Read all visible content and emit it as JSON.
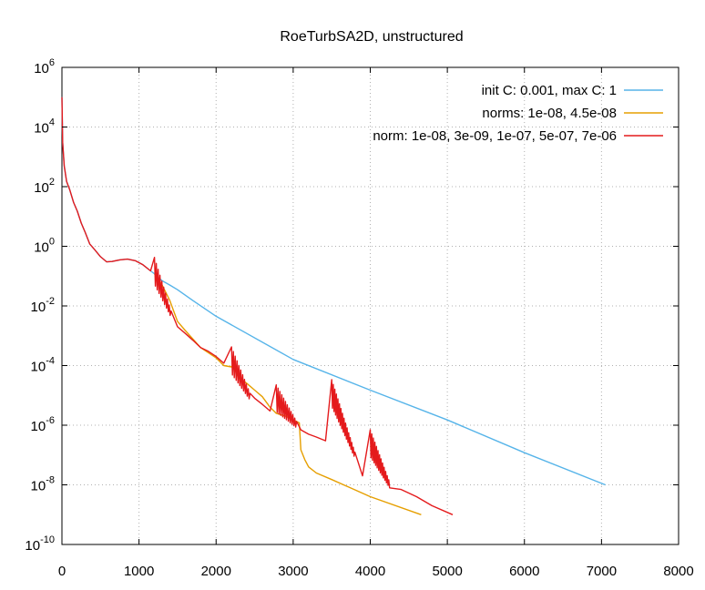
{
  "chart_data": {
    "type": "line",
    "title": "RoeTurbSA2D, unstructured",
    "xlabel": "",
    "ylabel": "",
    "xlim": [
      0,
      8000
    ],
    "ylim": [
      1e-10,
      1000000.0
    ],
    "yscale": "log",
    "grid": true,
    "legend_position": "top-right",
    "x_ticks": [
      0,
      1000,
      2000,
      3000,
      4000,
      5000,
      6000,
      7000,
      8000
    ],
    "y_ticks": [
      {
        "value": 1e-10,
        "base": "10",
        "exp": "-10"
      },
      {
        "value": 1e-08,
        "base": "10",
        "exp": "-8"
      },
      {
        "value": 1e-06,
        "base": "10",
        "exp": "-6"
      },
      {
        "value": 0.0001,
        "base": "10",
        "exp": "-4"
      },
      {
        "value": 0.01,
        "base": "10",
        "exp": "-2"
      },
      {
        "value": 1,
        "base": "10",
        "exp": "0"
      },
      {
        "value": 100,
        "base": "10",
        "exp": "2"
      },
      {
        "value": 10000,
        "base": "10",
        "exp": "4"
      },
      {
        "value": 1000000,
        "base": "10",
        "exp": "6"
      }
    ],
    "series": [
      {
        "name": "init C: 0.001, max C: 1",
        "color": "#56b4e9",
        "points": [
          [
            0,
            100000.0
          ],
          [
            10,
            3000
          ],
          [
            30,
            500
          ],
          [
            60,
            150
          ],
          [
            100,
            80
          ],
          [
            150,
            30
          ],
          [
            200,
            15
          ],
          [
            250,
            6
          ],
          [
            300,
            3
          ],
          [
            360,
            1.2
          ],
          [
            420,
            0.8
          ],
          [
            500,
            0.45
          ],
          [
            580,
            0.3
          ],
          [
            650,
            0.31
          ],
          [
            750,
            0.35
          ],
          [
            850,
            0.37
          ],
          [
            950,
            0.33
          ],
          [
            1050,
            0.24
          ],
          [
            1150,
            0.15
          ],
          [
            1200,
            0.12
          ],
          [
            1250,
            0.09
          ],
          [
            1300,
            0.07
          ],
          [
            1400,
            0.05
          ],
          [
            1500,
            0.035
          ],
          [
            1700,
            0.015
          ],
          [
            2000,
            0.0045
          ],
          [
            3000,
            0.00016
          ],
          [
            4000,
            1.5e-05
          ],
          [
            5000,
            1.5e-06
          ],
          [
            6000,
            1.2e-07
          ],
          [
            7050,
            1e-08
          ]
        ]
      },
      {
        "name": "norms: 1e-08, 4.5e-08",
        "color": "#e69f00",
        "points": [
          [
            1200,
            0.12
          ],
          [
            1300,
            0.05
          ],
          [
            1400,
            0.015
          ],
          [
            1500,
            0.003
          ],
          [
            1600,
            0.0015
          ],
          [
            1700,
            0.00077
          ],
          [
            1800,
            0.0004
          ],
          [
            1900,
            0.00027
          ],
          [
            2000,
            0.00018
          ],
          [
            2100,
            0.0001
          ],
          [
            2200,
            9e-05
          ],
          [
            2230,
            0.00013
          ],
          [
            2300,
            4e-05
          ],
          [
            2400,
            2.5e-05
          ],
          [
            2500,
            1.5e-05
          ],
          [
            2600,
            9e-06
          ],
          [
            2700,
            4e-06
          ],
          [
            2780,
            2.5e-06
          ],
          [
            2900,
            2e-06
          ],
          [
            3000,
            1.5e-06
          ],
          [
            3080,
            1.2e-06
          ],
          [
            3100,
            1.5e-07
          ],
          [
            3150,
            7e-08
          ],
          [
            3200,
            4e-08
          ],
          [
            3300,
            2.5e-08
          ],
          [
            3500,
            1.5e-08
          ],
          [
            4000,
            4e-09
          ],
          [
            4660,
            1e-09
          ]
        ]
      },
      {
        "name": "norm: 1e-08, 3e-09, 1e-07, 5e-07, 7e-06",
        "color": "#e41a1c",
        "points": [
          [
            0,
            100000.0
          ],
          [
            10,
            3000
          ],
          [
            30,
            500
          ],
          [
            60,
            150
          ],
          [
            100,
            80
          ],
          [
            150,
            30
          ],
          [
            200,
            15
          ],
          [
            250,
            6
          ],
          [
            300,
            3
          ],
          [
            360,
            1.2
          ],
          [
            420,
            0.8
          ],
          [
            500,
            0.45
          ],
          [
            580,
            0.3
          ],
          [
            650,
            0.31
          ],
          [
            750,
            0.35
          ],
          [
            850,
            0.37
          ],
          [
            950,
            0.33
          ],
          [
            1050,
            0.24
          ],
          [
            1150,
            0.15
          ],
          [
            1200,
            0.12
          ],
          [
            1300,
            0.03
          ],
          [
            1400,
            0.005
          ],
          [
            1500,
            0.002
          ],
          [
            1600,
            0.0012
          ],
          [
            1700,
            0.0007
          ],
          [
            1800,
            0.0004
          ],
          [
            1900,
            0.0003
          ],
          [
            2000,
            0.0002
          ],
          [
            2100,
            0.00012
          ],
          [
            2200,
            0.0001
          ],
          [
            2230,
            0.00012
          ],
          [
            2300,
            2e-05
          ],
          [
            2400,
            1.2e-05
          ],
          [
            2500,
            8e-06
          ],
          [
            2600,
            5e-06
          ],
          [
            2700,
            3e-06
          ],
          [
            2800,
            2.5e-06
          ],
          [
            2900,
            1.6e-06
          ],
          [
            3000,
            1e-06
          ],
          [
            3100,
            7e-07
          ],
          [
            3200,
            5e-07
          ],
          [
            3300,
            4e-07
          ],
          [
            3420,
            3e-07
          ],
          [
            3500,
            1.5e-06
          ],
          [
            3600,
            3e-07
          ],
          [
            3700,
            1e-07
          ],
          [
            3800,
            4e-08
          ],
          [
            3900,
            2e-08
          ],
          [
            4000,
            1.5e-08
          ],
          [
            4100,
            1.2e-08
          ],
          [
            4200,
            1e-08
          ],
          [
            4400,
            7e-09
          ],
          [
            4600,
            4e-09
          ],
          [
            4800,
            2e-09
          ],
          [
            5070,
            1e-09
          ]
        ]
      }
    ],
    "annotations_spikes": [
      {
        "series": 2,
        "x0": 1200,
        "x1": 1420,
        "hi": 0.15,
        "lo": 0.005,
        "step": 12
      },
      {
        "series": 2,
        "x0": 2200,
        "x1": 2450,
        "hi": 0.00015,
        "lo": 8e-06,
        "step": 12
      },
      {
        "series": 2,
        "x0": 2780,
        "x1": 3050,
        "hi": 8e-06,
        "lo": 1e-06,
        "step": 12
      },
      {
        "series": 2,
        "x0": 3500,
        "x1": 3800,
        "hi": 1.2e-05,
        "lo": 1e-07,
        "step": 10
      },
      {
        "series": 2,
        "x0": 4000,
        "x1": 4250,
        "hi": 2.5e-07,
        "lo": 1e-08,
        "step": 10
      }
    ]
  }
}
